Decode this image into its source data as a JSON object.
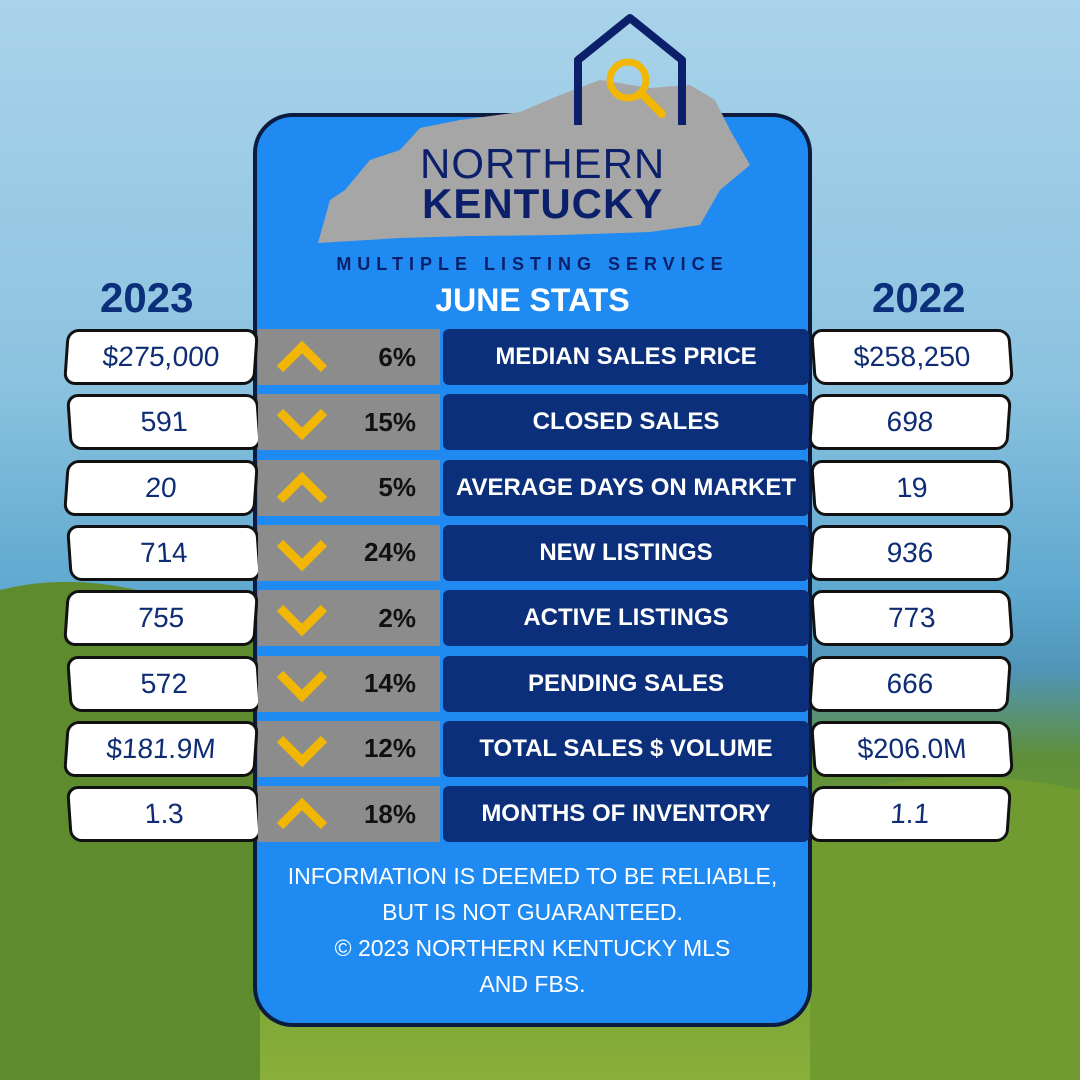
{
  "header": {
    "brand_line1": "NORTHERN",
    "brand_line2": "KENTUCKY",
    "service": "MULTIPLE LISTING SERVICE",
    "title": "JUNE STATS",
    "year_left": "2023",
    "year_right": "2022"
  },
  "rows": [
    {
      "current": "$275,000",
      "direction": "up",
      "change": "6%",
      "label": "MEDIAN SALES PRICE",
      "previous": "$258,250"
    },
    {
      "current": "591",
      "direction": "down",
      "change": "15%",
      "label": "CLOSED SALES",
      "previous": "698"
    },
    {
      "current": "20",
      "direction": "up",
      "change": "5%",
      "label": "AVERAGE DAYS ON MARKET",
      "previous": "19"
    },
    {
      "current": "714",
      "direction": "down",
      "change": "24%",
      "label": "NEW LISTINGS",
      "previous": "936"
    },
    {
      "current": "755",
      "direction": "down",
      "change": "2%",
      "label": "ACTIVE LISTINGS",
      "previous": "773"
    },
    {
      "current": "572",
      "direction": "down",
      "change": "14%",
      "label": "PENDING SALES",
      "previous": "666"
    },
    {
      "current": "$181.9M",
      "direction": "down",
      "change": "12%",
      "label": "TOTAL SALES $ VOLUME",
      "previous": "$206.0M"
    },
    {
      "current": "1.3",
      "direction": "up",
      "change": "18%",
      "label": "MONTHS OF INVENTORY",
      "previous": "1.1"
    }
  ],
  "footer": [
    "INFORMATION IS DEEMED TO BE RELIABLE,",
    "BUT IS NOT GUARANTEED.",
    "© 2023 NORTHERN KENTUCKY MLS",
    "AND FBS."
  ]
}
